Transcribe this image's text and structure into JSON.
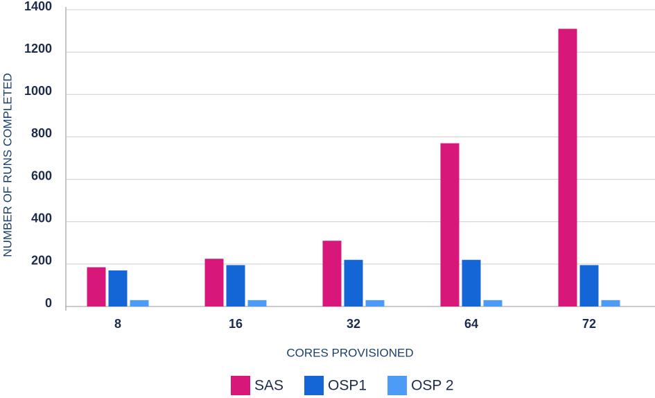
{
  "chart_data": {
    "type": "bar",
    "categories": [
      "8",
      "16",
      "32",
      "64",
      "72"
    ],
    "series": [
      {
        "name": "SAS",
        "color": "#d8177a",
        "values": [
          185,
          225,
          310,
          770,
          1310
        ]
      },
      {
        "name": "OSP1",
        "color": "#1466d6",
        "values": [
          170,
          195,
          220,
          220,
          195
        ]
      },
      {
        "name": "OSP 2",
        "color": "#4c9bf7",
        "values": [
          30,
          30,
          30,
          30,
          30
        ]
      }
    ],
    "x_label": "CORES PROVISIONED",
    "y_label": "NUMBER OF RUNS COMPLETED",
    "ylim": [
      0,
      1400
    ],
    "yticks": [
      0,
      200,
      400,
      600,
      800,
      1000,
      1200,
      1400
    ],
    "grid": true,
    "legend": "bottom"
  }
}
